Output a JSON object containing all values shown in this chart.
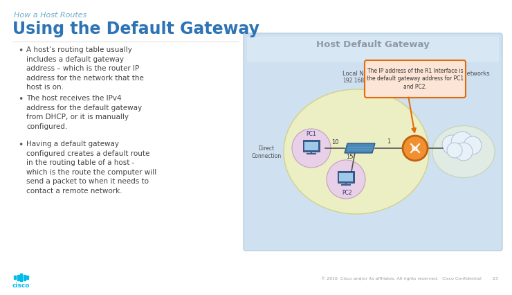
{
  "title_small": "How a Host Routes",
  "title_large": "Using the Default Gateway",
  "title_small_color": "#6aaccc",
  "title_large_color": "#2e74b5",
  "background_color": "#ffffff",
  "bullet_points": [
    "A host’s routing table usually\nincludes a default gateway\naddress – which is the router IP\naddress for the network that the\nhost is on.",
    "The host receives the IPv4\naddress for the default gateway\nfrom DHCP, or it is manually\nconfigured.",
    "Having a default gateway\nconfigured creates a default route\nin the routing table of a host -\nwhich is the route the computer will\nsend a packet to when it needs to\ncontact a remote network."
  ],
  "bullet_color": "#404040",
  "bullet_fontsize": 7.5,
  "diagram_bg": "#cfe0f0",
  "diagram_title": "Host Default Gateway",
  "diagram_title_color": "#1a1a2e",
  "local_network_label": "Local Network Route",
  "local_network_ip": "192.168.10.0/24",
  "remote_networks_label": "Remote Networks",
  "direct_connection_label": "Direct\nConnection",
  "callout_text": "The IP address of the R1 Interface is\nthe default gateway address for PC1\nand PC2.",
  "callout_bg": "#fce4d6",
  "callout_border": "#e36c09",
  "footer_text": "© 2016  Cisco and/or its affiliates. All rights reserved.   Cisco Confidential        23",
  "cisco_logo_color": "#00bceb",
  "local_ellipse_color": "#f0f0c0",
  "pc1_circle_color": "#e8d0e8",
  "pc2_circle_color": "#e8d0e8",
  "r1_circle_color": "#f09030",
  "cloud_color": "#e8f0f8"
}
